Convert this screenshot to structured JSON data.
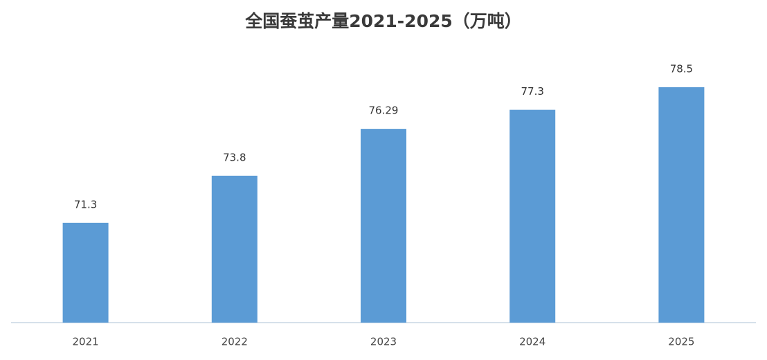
{
  "chart_data": {
    "type": "bar",
    "title": "全国蚕茧产量2021-2025（万吨）",
    "categories": [
      "2021",
      "2022",
      "2023",
      "2024",
      "2025"
    ],
    "values": [
      71.3,
      73.8,
      76.29,
      77.3,
      78.5
    ],
    "color": "#5b9bd5",
    "ylim": [
      66,
      81
    ]
  }
}
